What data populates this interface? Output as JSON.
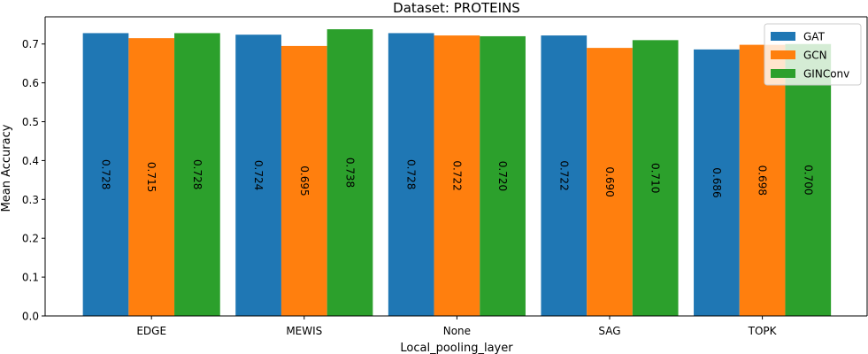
{
  "chart_data": {
    "type": "bar",
    "title": "Dataset: PROTEINS",
    "xlabel": "Local_pooling_layer",
    "ylabel": "Mean Accuracy",
    "categories": [
      "EDGE",
      "MEWIS",
      "None",
      "SAG",
      "TOPK"
    ],
    "series": [
      {
        "name": "GAT",
        "color": "#1f77b4",
        "values": [
          0.728,
          0.724,
          0.728,
          0.722,
          0.686
        ],
        "labels": [
          "0.728",
          "0.724",
          "0.728",
          "0.722",
          "0.686"
        ]
      },
      {
        "name": "GCN",
        "color": "#ff7f0e",
        "values": [
          0.715,
          0.695,
          0.722,
          0.69,
          0.698
        ],
        "labels": [
          "0.715",
          "0.695",
          "0.722",
          "0.690",
          "0.698"
        ]
      },
      {
        "name": "GINConv",
        "color": "#2ca02c",
        "values": [
          0.728,
          0.738,
          0.72,
          0.71,
          0.7
        ],
        "labels": [
          "0.728",
          "0.738",
          "0.720",
          "0.710",
          "0.700"
        ]
      }
    ],
    "ylim": [
      0,
      0.77
    ],
    "yticks": [
      "0.0",
      "0.1",
      "0.2",
      "0.3",
      "0.4",
      "0.5",
      "0.6",
      "0.7"
    ],
    "grid": false,
    "legend_position": "top-right"
  }
}
